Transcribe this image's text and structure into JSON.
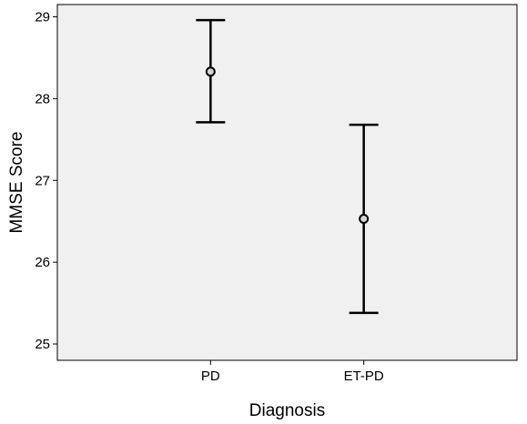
{
  "chart_data": {
    "type": "errorbar",
    "xlabel": "Diagnosis",
    "ylabel": "MMSE Score",
    "categories": [
      "PD",
      "ET-PD"
    ],
    "series": [
      {
        "means": [
          28.33,
          26.53
        ],
        "lower": [
          27.71,
          25.38
        ],
        "upper": [
          28.96,
          27.68
        ]
      }
    ],
    "ylim": [
      24.8,
      29.15
    ],
    "yticks": [
      25,
      26,
      27,
      28,
      29
    ],
    "grid": false,
    "colors": {
      "plot_background": "#f0f0f0",
      "line": "#000000",
      "marker_fill": "#d4d4d4"
    }
  }
}
